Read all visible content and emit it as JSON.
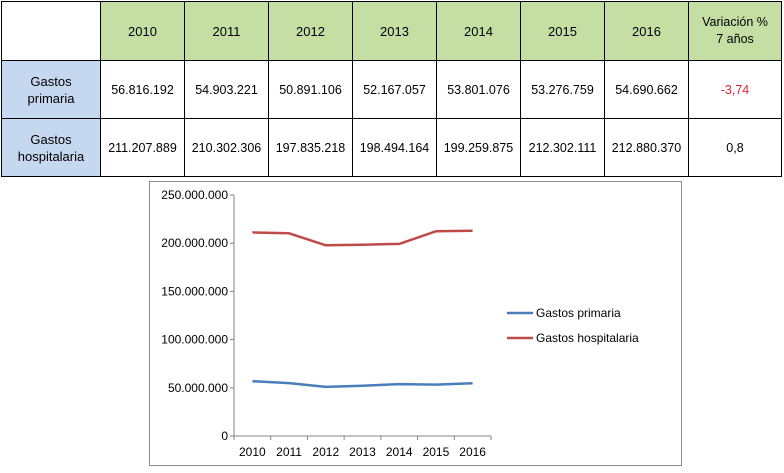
{
  "table": {
    "header": {
      "corner": "",
      "years": [
        "2010",
        "2011",
        "2012",
        "2013",
        "2014",
        "2015",
        "2016"
      ],
      "variation_line1": "Variación %",
      "variation_line2": "7 años"
    },
    "rows": [
      {
        "label_line1": "Gastos",
        "label_line2": "primaria",
        "values": [
          "56.816.192",
          "54.903.221",
          "50.891.106",
          "52.167.057",
          "53.801.076",
          "53.276.759",
          "54.690.662"
        ],
        "variation": "-3,74",
        "variation_color": "#e8262e"
      },
      {
        "label_line1": "Gastos",
        "label_line2": "hospitalaria",
        "values": [
          "211.207.889",
          "210.302.306",
          "197.835.218",
          "198.494.164",
          "199.259.875",
          "212.302.111",
          "212.880.370"
        ],
        "variation": "0,8",
        "variation_color": "#000000"
      }
    ],
    "colors": {
      "year_header_bg": "#c5dea4",
      "row_header_bg": "#c6d8ef"
    }
  },
  "chart_data": {
    "type": "line",
    "x": [
      "2010",
      "2011",
      "2012",
      "2013",
      "2014",
      "2015",
      "2016"
    ],
    "series": [
      {
        "name": "Gastos primaria",
        "color": "#4a7ebb",
        "values": [
          56816192,
          54903221,
          50891106,
          52167057,
          53801076,
          53276759,
          54690662
        ]
      },
      {
        "name": "Gastos hospitalaria",
        "color": "#be4b48",
        "values": [
          211207889,
          210302306,
          197835218,
          198494164,
          199259875,
          212302111,
          212880370
        ]
      }
    ],
    "ylim": [
      0,
      250000000
    ],
    "yticks": [
      0,
      50000000,
      100000000,
      150000000,
      200000000,
      250000000
    ],
    "ytick_labels": [
      "0",
      "50.000.000",
      "100.000.000",
      "150.000.000",
      "200.000.000",
      "250.000.000"
    ],
    "grid": false,
    "legend": "right",
    "title": "",
    "xlabel": "",
    "ylabel": ""
  }
}
